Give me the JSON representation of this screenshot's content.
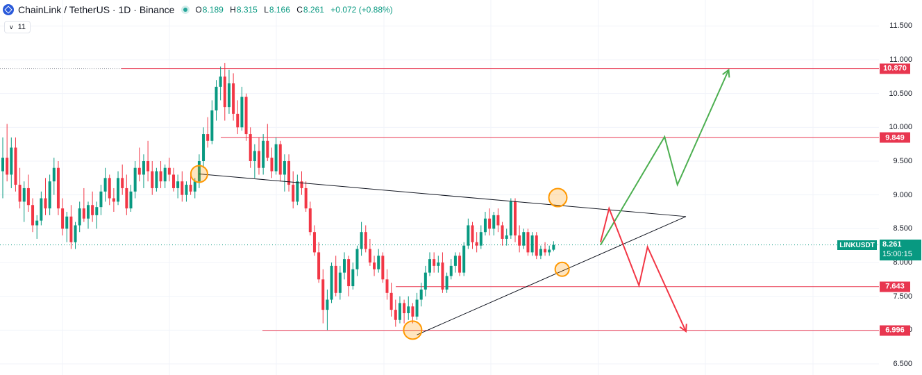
{
  "header": {
    "title": "ChainLink / TetherUS · 1D · Binance",
    "ohlc": {
      "o_label": "O",
      "o": "8.189",
      "h_label": "H",
      "h": "8.315",
      "l_label": "L",
      "l": "8.166",
      "c_label": "C",
      "c": "8.261",
      "change": "+0.072 (+0.88%)"
    },
    "indicator_count": "11"
  },
  "symbol_tag": "LINKUSDT",
  "last_price": {
    "price": "8.261",
    "countdown": "15:00:15"
  },
  "colors": {
    "up": "#089981",
    "down": "#f23645",
    "resistance": "#e8364f",
    "bull_path": "#4caf50",
    "bear_path": "#f23645",
    "marker": "#ff9800"
  },
  "chart_data": {
    "type": "candlestick",
    "symbol": "LINKUSDT",
    "timeframe": "1D",
    "exchange": "Binance",
    "y_axis": {
      "ticks": [
        "6.500",
        "7.000",
        "7.500",
        "8.000",
        "8.500",
        "9.000",
        "9.500",
        "10.000",
        "10.500",
        "11.000",
        "11.500"
      ],
      "ylim": [
        6.3,
        11.85
      ]
    },
    "candles": [
      [
        9.35,
        9.85,
        8.95,
        9.55
      ],
      [
        9.55,
        10.05,
        9.2,
        9.3
      ],
      [
        9.3,
        9.85,
        9.1,
        9.7
      ],
      [
        9.7,
        9.85,
        9.05,
        9.15
      ],
      [
        9.15,
        9.4,
        8.8,
        8.9
      ],
      [
        8.9,
        9.2,
        8.6,
        9.1
      ],
      [
        9.1,
        9.3,
        8.75,
        8.85
      ],
      [
        8.85,
        8.95,
        8.45,
        8.55
      ],
      [
        8.55,
        8.7,
        8.35,
        8.62
      ],
      [
        8.62,
        9.05,
        8.55,
        8.95
      ],
      [
        8.95,
        9.25,
        8.7,
        8.8
      ],
      [
        8.8,
        9.3,
        8.7,
        9.2
      ],
      [
        9.2,
        9.55,
        9.0,
        9.4
      ],
      [
        9.4,
        9.5,
        8.7,
        8.8
      ],
      [
        8.8,
        8.95,
        8.4,
        8.5
      ],
      [
        8.5,
        8.75,
        8.3,
        8.68
      ],
      [
        8.68,
        8.85,
        8.2,
        8.3
      ],
      [
        8.3,
        8.6,
        8.2,
        8.55
      ],
      [
        8.55,
        8.9,
        8.45,
        8.8
      ],
      [
        8.8,
        9.1,
        8.6,
        8.65
      ],
      [
        8.65,
        8.9,
        8.5,
        8.85
      ],
      [
        8.85,
        9.05,
        8.6,
        8.7
      ],
      [
        8.7,
        8.9,
        8.5,
        8.82
      ],
      [
        8.82,
        9.15,
        8.7,
        9.05
      ],
      [
        9.05,
        9.4,
        8.9,
        9.25
      ],
      [
        9.25,
        9.3,
        8.85,
        8.95
      ],
      [
        8.95,
        9.1,
        8.75,
        8.9
      ],
      [
        8.9,
        9.35,
        8.85,
        9.25
      ],
      [
        9.25,
        9.45,
        9.0,
        9.1
      ],
      [
        9.1,
        9.3,
        8.7,
        8.8
      ],
      [
        8.8,
        9.15,
        8.75,
        9.05
      ],
      [
        9.05,
        9.5,
        8.95,
        9.4
      ],
      [
        9.4,
        9.7,
        9.2,
        9.3
      ],
      [
        9.3,
        9.6,
        9.1,
        9.5
      ],
      [
        9.5,
        9.8,
        9.2,
        9.35
      ],
      [
        9.35,
        9.5,
        9.0,
        9.1
      ],
      [
        9.1,
        9.4,
        9.05,
        9.35
      ],
      [
        9.35,
        9.5,
        9.1,
        9.2
      ],
      [
        9.2,
        9.45,
        9.1,
        9.4
      ],
      [
        9.4,
        9.55,
        9.2,
        9.3
      ],
      [
        9.3,
        9.4,
        9.05,
        9.1
      ],
      [
        9.1,
        9.3,
        8.95,
        9.2
      ],
      [
        9.2,
        9.35,
        8.9,
        9.0
      ],
      [
        9.0,
        9.2,
        8.9,
        9.15
      ],
      [
        9.15,
        9.3,
        9.0,
        9.05
      ],
      [
        9.05,
        9.25,
        8.95,
        9.2
      ],
      [
        9.2,
        9.6,
        9.1,
        9.5
      ],
      [
        9.5,
        10.0,
        9.4,
        9.9
      ],
      [
        9.9,
        10.15,
        9.7,
        9.8
      ],
      [
        9.8,
        10.4,
        9.75,
        10.25
      ],
      [
        10.25,
        10.7,
        10.1,
        10.6
      ],
      [
        10.6,
        10.9,
        10.4,
        10.75
      ],
      [
        10.75,
        10.95,
        10.1,
        10.3
      ],
      [
        10.3,
        10.85,
        10.2,
        10.65
      ],
      [
        10.65,
        10.8,
        10.1,
        10.2
      ],
      [
        10.2,
        10.4,
        9.9,
        10.0
      ],
      [
        10.0,
        10.6,
        9.95,
        10.45
      ],
      [
        10.45,
        10.5,
        9.8,
        9.9
      ],
      [
        9.9,
        10.0,
        9.4,
        9.5
      ],
      [
        9.5,
        9.75,
        9.25,
        9.65
      ],
      [
        9.65,
        9.85,
        9.3,
        9.4
      ],
      [
        9.4,
        9.9,
        9.3,
        9.8
      ],
      [
        9.8,
        10.05,
        9.5,
        9.55
      ],
      [
        9.55,
        9.7,
        9.25,
        9.35
      ],
      [
        9.35,
        9.85,
        9.3,
        9.75
      ],
      [
        9.75,
        9.8,
        9.2,
        9.3
      ],
      [
        9.3,
        9.6,
        9.05,
        9.5
      ],
      [
        9.5,
        9.6,
        9.05,
        9.15
      ],
      [
        9.15,
        9.35,
        8.8,
        8.9
      ],
      [
        8.9,
        9.3,
        8.85,
        9.2
      ],
      [
        9.2,
        9.35,
        9.0,
        9.1
      ],
      [
        9.1,
        9.2,
        8.75,
        8.8
      ],
      [
        8.8,
        8.9,
        8.4,
        8.45
      ],
      [
        8.45,
        8.55,
        8.1,
        8.15
      ],
      [
        8.15,
        8.3,
        7.7,
        7.75
      ],
      [
        7.75,
        7.9,
        7.1,
        7.3
      ],
      [
        7.3,
        7.6,
        7.0,
        7.45
      ],
      [
        7.45,
        8.0,
        7.4,
        7.95
      ],
      [
        7.95,
        8.1,
        7.5,
        7.55
      ],
      [
        7.55,
        7.95,
        7.45,
        7.85
      ],
      [
        7.85,
        8.15,
        7.75,
        8.05
      ],
      [
        8.05,
        8.1,
        7.5,
        7.65
      ],
      [
        7.65,
        8.0,
        7.6,
        7.9
      ],
      [
        7.9,
        8.25,
        7.8,
        8.2
      ],
      [
        8.2,
        8.6,
        8.1,
        8.45
      ],
      [
        8.45,
        8.55,
        8.15,
        8.2
      ],
      [
        8.2,
        8.35,
        7.95,
        8.0
      ],
      [
        8.0,
        8.1,
        7.8,
        7.9
      ],
      [
        7.9,
        8.2,
        7.85,
        8.1
      ],
      [
        8.1,
        8.15,
        7.7,
        7.75
      ],
      [
        7.75,
        7.9,
        7.45,
        7.55
      ],
      [
        7.55,
        7.7,
        7.2,
        7.3
      ],
      [
        7.3,
        7.45,
        7.05,
        7.15
      ],
      [
        7.15,
        7.5,
        7.1,
        7.4
      ],
      [
        7.4,
        7.45,
        7.1,
        7.25
      ],
      [
        7.25,
        7.5,
        7.15,
        7.35
      ],
      [
        7.35,
        7.4,
        7.1,
        7.2
      ],
      [
        7.2,
        7.55,
        7.15,
        7.45
      ],
      [
        7.45,
        7.7,
        7.35,
        7.6
      ],
      [
        7.6,
        7.95,
        7.5,
        7.85
      ],
      [
        7.85,
        8.15,
        7.8,
        8.05
      ],
      [
        8.05,
        8.15,
        7.85,
        7.95
      ],
      [
        7.95,
        8.1,
        7.85,
        8.0
      ],
      [
        8.0,
        8.15,
        7.55,
        7.6
      ],
      [
        7.6,
        7.85,
        7.55,
        7.8
      ],
      [
        7.8,
        8.05,
        7.75,
        7.95
      ],
      [
        7.95,
        8.15,
        7.85,
        8.1
      ],
      [
        8.1,
        8.15,
        7.8,
        7.85
      ],
      [
        7.85,
        8.3,
        7.8,
        8.25
      ],
      [
        8.25,
        8.65,
        8.2,
        8.55
      ],
      [
        8.55,
        8.6,
        8.2,
        8.3
      ],
      [
        8.3,
        8.45,
        8.15,
        8.25
      ],
      [
        8.25,
        8.55,
        8.2,
        8.45
      ],
      [
        8.45,
        8.75,
        8.4,
        8.65
      ],
      [
        8.65,
        8.8,
        8.4,
        8.5
      ],
      [
        8.5,
        8.75,
        8.4,
        8.7
      ],
      [
        8.7,
        8.8,
        8.45,
        8.55
      ],
      [
        8.55,
        8.6,
        8.25,
        8.35
      ],
      [
        8.35,
        8.5,
        8.25,
        8.4
      ],
      [
        8.4,
        8.95,
        8.35,
        8.9
      ],
      [
        8.9,
        8.95,
        8.3,
        8.4
      ],
      [
        8.4,
        8.55,
        8.15,
        8.25
      ],
      [
        8.25,
        8.5,
        8.2,
        8.45
      ],
      [
        8.45,
        8.5,
        8.1,
        8.15
      ],
      [
        8.15,
        8.45,
        8.1,
        8.4
      ],
      [
        8.4,
        8.45,
        8.05,
        8.1
      ],
      [
        8.1,
        8.25,
        8.05,
        8.2
      ],
      [
        8.2,
        8.3,
        8.1,
        8.15
      ],
      [
        8.15,
        8.25,
        8.1,
        8.19
      ],
      [
        8.189,
        8.315,
        8.166,
        8.261
      ]
    ],
    "price_levels": [
      {
        "price": 10.87,
        "label": "10.870"
      },
      {
        "price": 9.849,
        "label": "9.849"
      },
      {
        "price": 7.643,
        "label": "7.643"
      },
      {
        "price": 6.996,
        "label": "6.996"
      }
    ],
    "triangle": {
      "upper": [
        [
          46,
          9.31
        ],
        [
          160,
          8.68
        ]
      ],
      "lower": [
        [
          97,
          6.93
        ],
        [
          160,
          8.68
        ]
      ]
    },
    "touch_points": [
      [
        46,
        9.31
      ],
      [
        130,
        8.96
      ],
      [
        96,
        7.0
      ],
      [
        131,
        7.9
      ]
    ],
    "bullish_projection": [
      [
        140,
        8.26
      ],
      [
        155,
        9.86
      ],
      [
        158,
        9.15
      ],
      [
        170,
        10.85
      ]
    ],
    "bearish_projection": [
      [
        140,
        8.3
      ],
      [
        142,
        8.8
      ],
      [
        149,
        7.66
      ],
      [
        151,
        8.23
      ],
      [
        160,
        6.98
      ]
    ],
    "last_price": 8.261
  }
}
